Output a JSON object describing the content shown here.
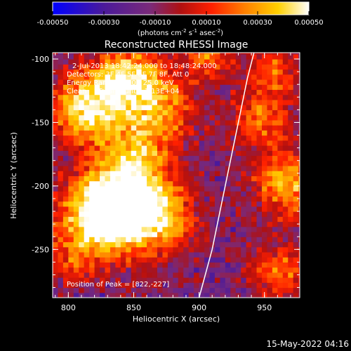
{
  "chart_data": {
    "type": "heatmap",
    "title": "Reconstructed RHESSI Image",
    "xlabel": "Heliocentric X (arcsec)",
    "ylabel": "Heliocentric Y (arcsec)",
    "xlim": [
      788,
      977
    ],
    "ylim": [
      -288,
      -95
    ],
    "xticks": [
      800,
      850,
      900,
      950
    ],
    "yticks": [
      -100,
      -150,
      -200,
      -250
    ],
    "colorbar": {
      "range": [
        -0.0005,
        0.0005
      ],
      "ticks": [
        "-0.00050",
        "-0.00030",
        "-0.00010",
        "0.00010",
        "0.00030",
        "0.00050"
      ],
      "label_pre": "(photons cm",
      "label_e1": "-2",
      "label_mid1": " s",
      "label_e2": "-1",
      "label_mid2": " asec",
      "label_e3": "-2",
      "label_post": ")",
      "colors": [
        "#0000ff",
        "#4b1a9a",
        "#7a2a7a",
        "#b01010",
        "#ff2000",
        "#ff8000",
        "#ffd000",
        "#ffffff"
      ]
    },
    "annotations": [
      "2-Jul-2013 18:42:24.000 to 18:48:24.000",
      "Detectors: 3F 4F 5F 6F 7F 8F, Att 0",
      "Energy Range: 12.0 - 25.0 keV",
      "Clean     Total counts: 1.13E+04"
    ],
    "peak_label": "Position of Peak = [822,-227]",
    "peak": [
      822,
      -227
    ],
    "limb_x": [
      900,
      910,
      920,
      930,
      937,
      942
    ],
    "limb_y": [
      -288,
      -250,
      -200,
      -150,
      -115,
      -95
    ],
    "sources": [
      {
        "x": 822,
        "y": -227,
        "amp": 1.0,
        "sigma": 22
      },
      {
        "x": 845,
        "y": -210,
        "amp": 0.85,
        "sigma": 22
      },
      {
        "x": 815,
        "y": -140,
        "amp": 0.9,
        "sigma": 20
      },
      {
        "x": 845,
        "y": -115,
        "amp": 0.75,
        "sigma": 18
      },
      {
        "x": 870,
        "y": -140,
        "amp": 0.6,
        "sigma": 18
      },
      {
        "x": 870,
        "y": -230,
        "amp": 0.55,
        "sigma": 20
      },
      {
        "x": 850,
        "y": -175,
        "amp": 0.45,
        "sigma": 18
      },
      {
        "x": 965,
        "y": -200,
        "amp": 0.7,
        "sigma": 18
      },
      {
        "x": 945,
        "y": -150,
        "amp": 0.55,
        "sigma": 16
      },
      {
        "x": 955,
        "y": -110,
        "amp": 0.5,
        "sigma": 14
      },
      {
        "x": 960,
        "y": -270,
        "amp": 0.5,
        "sigma": 16
      },
      {
        "x": 905,
        "y": -100,
        "amp": 0.5,
        "sigma": 14
      },
      {
        "x": 800,
        "y": -260,
        "amp": 0.3,
        "sigma": 14
      }
    ]
  },
  "footer": {
    "timestamp": "15-May-2022 04:16"
  }
}
